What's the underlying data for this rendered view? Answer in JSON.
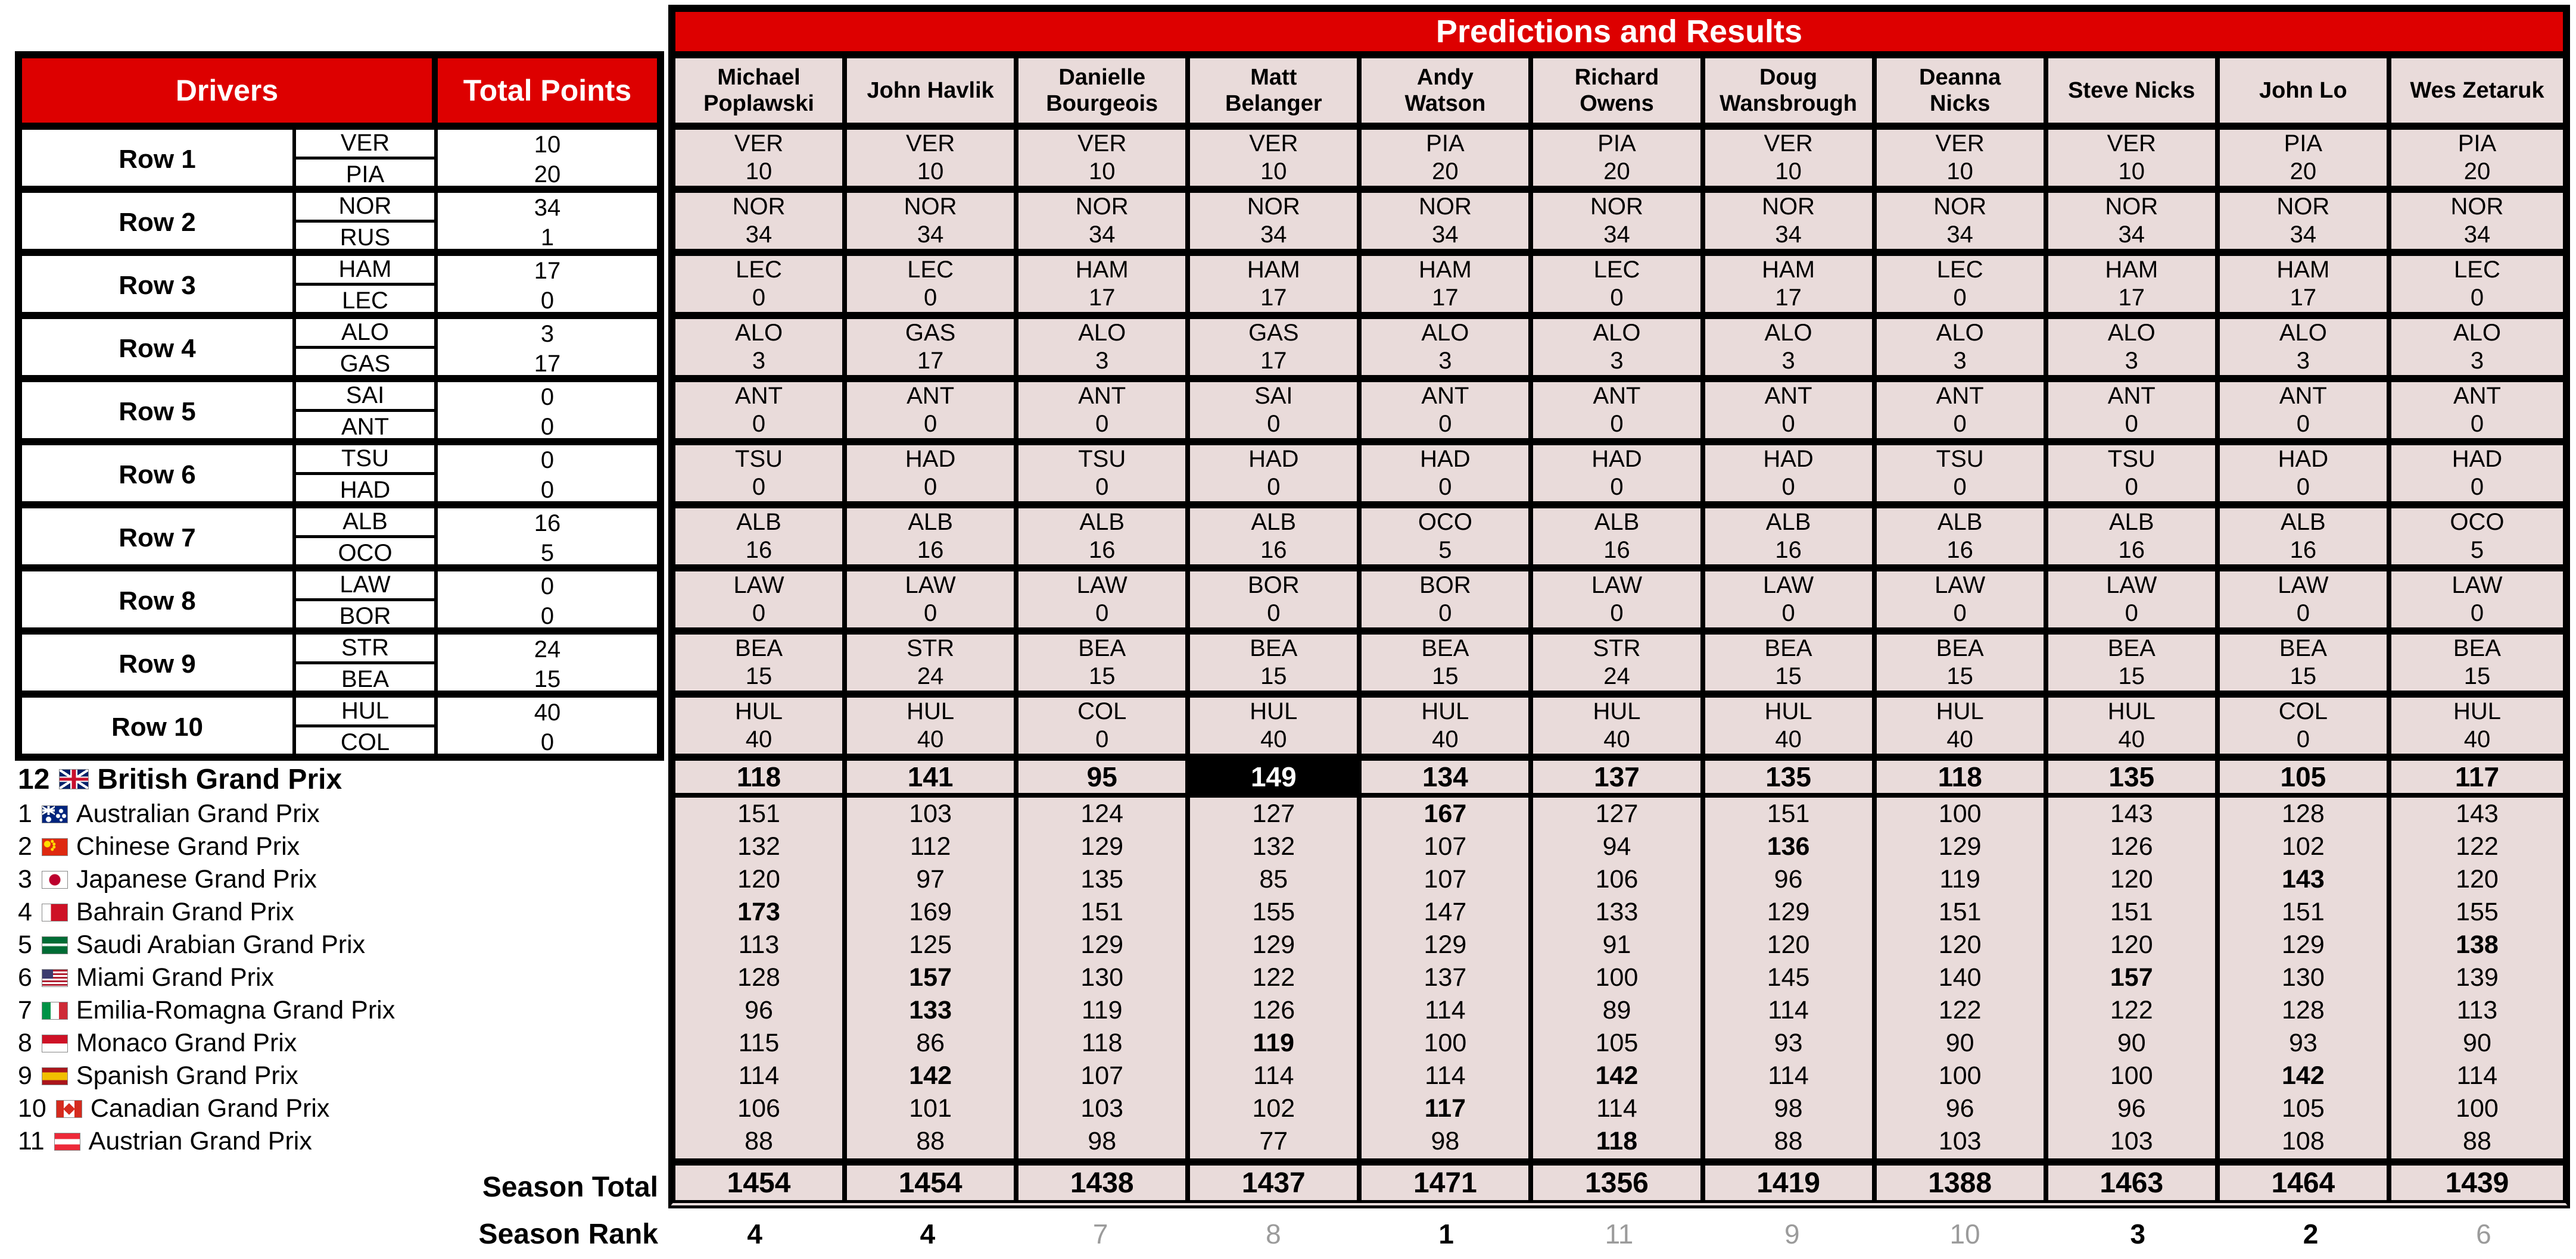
{
  "colors": {
    "header_red": "#dd0000",
    "cell_pink": "#e9dbda",
    "highlight_black": "#000000",
    "rank_gray": "#9b9b9b"
  },
  "banner": {
    "title": "Predictions and Results"
  },
  "left_header": {
    "drivers": "Drivers",
    "total_points": "Total Points"
  },
  "predictors": [
    "Michael Poplawski",
    "John Havlik",
    "Danielle Bourgeois",
    "Matt Belanger",
    "Andy Watson",
    "Richard Owens",
    "Doug Wansbrough",
    "Deanna Nicks",
    "Steve Nicks",
    "John Lo",
    "Wes Zetaruk"
  ],
  "rows": [
    {
      "label": "Row 1",
      "drivers": [
        "VER",
        "PIA"
      ],
      "points": [
        "10",
        "20"
      ],
      "predictions": [
        {
          "code": "VER",
          "pts": "10"
        },
        {
          "code": "VER",
          "pts": "10"
        },
        {
          "code": "VER",
          "pts": "10"
        },
        {
          "code": "VER",
          "pts": "10"
        },
        {
          "code": "PIA",
          "pts": "20"
        },
        {
          "code": "PIA",
          "pts": "20"
        },
        {
          "code": "VER",
          "pts": "10"
        },
        {
          "code": "VER",
          "pts": "10"
        },
        {
          "code": "VER",
          "pts": "10"
        },
        {
          "code": "PIA",
          "pts": "20"
        },
        {
          "code": "PIA",
          "pts": "20"
        }
      ]
    },
    {
      "label": "Row 2",
      "drivers": [
        "NOR",
        "RUS"
      ],
      "points": [
        "34",
        "1"
      ],
      "predictions": [
        {
          "code": "NOR",
          "pts": "34"
        },
        {
          "code": "NOR",
          "pts": "34"
        },
        {
          "code": "NOR",
          "pts": "34"
        },
        {
          "code": "NOR",
          "pts": "34"
        },
        {
          "code": "NOR",
          "pts": "34"
        },
        {
          "code": "NOR",
          "pts": "34"
        },
        {
          "code": "NOR",
          "pts": "34"
        },
        {
          "code": "NOR",
          "pts": "34"
        },
        {
          "code": "NOR",
          "pts": "34"
        },
        {
          "code": "NOR",
          "pts": "34"
        },
        {
          "code": "NOR",
          "pts": "34"
        }
      ]
    },
    {
      "label": "Row 3",
      "drivers": [
        "HAM",
        "LEC"
      ],
      "points": [
        "17",
        "0"
      ],
      "predictions": [
        {
          "code": "LEC",
          "pts": "0"
        },
        {
          "code": "LEC",
          "pts": "0"
        },
        {
          "code": "HAM",
          "pts": "17"
        },
        {
          "code": "HAM",
          "pts": "17"
        },
        {
          "code": "HAM",
          "pts": "17"
        },
        {
          "code": "LEC",
          "pts": "0"
        },
        {
          "code": "HAM",
          "pts": "17"
        },
        {
          "code": "LEC",
          "pts": "0"
        },
        {
          "code": "HAM",
          "pts": "17"
        },
        {
          "code": "HAM",
          "pts": "17"
        },
        {
          "code": "LEC",
          "pts": "0"
        }
      ]
    },
    {
      "label": "Row 4",
      "drivers": [
        "ALO",
        "GAS"
      ],
      "points": [
        "3",
        "17"
      ],
      "predictions": [
        {
          "code": "ALO",
          "pts": "3"
        },
        {
          "code": "GAS",
          "pts": "17"
        },
        {
          "code": "ALO",
          "pts": "3"
        },
        {
          "code": "GAS",
          "pts": "17"
        },
        {
          "code": "ALO",
          "pts": "3"
        },
        {
          "code": "ALO",
          "pts": "3"
        },
        {
          "code": "ALO",
          "pts": "3"
        },
        {
          "code": "ALO",
          "pts": "3"
        },
        {
          "code": "ALO",
          "pts": "3"
        },
        {
          "code": "ALO",
          "pts": "3"
        },
        {
          "code": "ALO",
          "pts": "3"
        }
      ]
    },
    {
      "label": "Row 5",
      "drivers": [
        "SAI",
        "ANT"
      ],
      "points": [
        "0",
        "0"
      ],
      "predictions": [
        {
          "code": "ANT",
          "pts": "0"
        },
        {
          "code": "ANT",
          "pts": "0"
        },
        {
          "code": "ANT",
          "pts": "0"
        },
        {
          "code": "SAI",
          "pts": "0"
        },
        {
          "code": "ANT",
          "pts": "0"
        },
        {
          "code": "ANT",
          "pts": "0"
        },
        {
          "code": "ANT",
          "pts": "0"
        },
        {
          "code": "ANT",
          "pts": "0"
        },
        {
          "code": "ANT",
          "pts": "0"
        },
        {
          "code": "ANT",
          "pts": "0"
        },
        {
          "code": "ANT",
          "pts": "0"
        }
      ]
    },
    {
      "label": "Row 6",
      "drivers": [
        "TSU",
        "HAD"
      ],
      "points": [
        "0",
        "0"
      ],
      "predictions": [
        {
          "code": "TSU",
          "pts": "0"
        },
        {
          "code": "HAD",
          "pts": "0"
        },
        {
          "code": "TSU",
          "pts": "0"
        },
        {
          "code": "HAD",
          "pts": "0"
        },
        {
          "code": "HAD",
          "pts": "0"
        },
        {
          "code": "HAD",
          "pts": "0"
        },
        {
          "code": "HAD",
          "pts": "0"
        },
        {
          "code": "TSU",
          "pts": "0"
        },
        {
          "code": "TSU",
          "pts": "0"
        },
        {
          "code": "HAD",
          "pts": "0"
        },
        {
          "code": "HAD",
          "pts": "0"
        }
      ]
    },
    {
      "label": "Row 7",
      "drivers": [
        "ALB",
        "OCO"
      ],
      "points": [
        "16",
        "5"
      ],
      "predictions": [
        {
          "code": "ALB",
          "pts": "16"
        },
        {
          "code": "ALB",
          "pts": "16"
        },
        {
          "code": "ALB",
          "pts": "16"
        },
        {
          "code": "ALB",
          "pts": "16"
        },
        {
          "code": "OCO",
          "pts": "5"
        },
        {
          "code": "ALB",
          "pts": "16"
        },
        {
          "code": "ALB",
          "pts": "16"
        },
        {
          "code": "ALB",
          "pts": "16"
        },
        {
          "code": "ALB",
          "pts": "16"
        },
        {
          "code": "ALB",
          "pts": "16"
        },
        {
          "code": "OCO",
          "pts": "5"
        }
      ]
    },
    {
      "label": "Row 8",
      "drivers": [
        "LAW",
        "BOR"
      ],
      "points": [
        "0",
        "0"
      ],
      "predictions": [
        {
          "code": "LAW",
          "pts": "0"
        },
        {
          "code": "LAW",
          "pts": "0"
        },
        {
          "code": "LAW",
          "pts": "0"
        },
        {
          "code": "BOR",
          "pts": "0"
        },
        {
          "code": "BOR",
          "pts": "0"
        },
        {
          "code": "LAW",
          "pts": "0"
        },
        {
          "code": "LAW",
          "pts": "0"
        },
        {
          "code": "LAW",
          "pts": "0"
        },
        {
          "code": "LAW",
          "pts": "0"
        },
        {
          "code": "LAW",
          "pts": "0"
        },
        {
          "code": "LAW",
          "pts": "0"
        }
      ]
    },
    {
      "label": "Row 9",
      "drivers": [
        "STR",
        "BEA"
      ],
      "points": [
        "24",
        "15"
      ],
      "predictions": [
        {
          "code": "BEA",
          "pts": "15"
        },
        {
          "code": "STR",
          "pts": "24"
        },
        {
          "code": "BEA",
          "pts": "15"
        },
        {
          "code": "BEA",
          "pts": "15"
        },
        {
          "code": "BEA",
          "pts": "15"
        },
        {
          "code": "STR",
          "pts": "24"
        },
        {
          "code": "BEA",
          "pts": "15"
        },
        {
          "code": "BEA",
          "pts": "15"
        },
        {
          "code": "BEA",
          "pts": "15"
        },
        {
          "code": "BEA",
          "pts": "15"
        },
        {
          "code": "BEA",
          "pts": "15"
        }
      ]
    },
    {
      "label": "Row 10",
      "drivers": [
        "HUL",
        "COL"
      ],
      "points": [
        "40",
        "0"
      ],
      "predictions": [
        {
          "code": "HUL",
          "pts": "40"
        },
        {
          "code": "HUL",
          "pts": "40"
        },
        {
          "code": "COL",
          "pts": "0"
        },
        {
          "code": "HUL",
          "pts": "40"
        },
        {
          "code": "HUL",
          "pts": "40"
        },
        {
          "code": "HUL",
          "pts": "40"
        },
        {
          "code": "HUL",
          "pts": "40"
        },
        {
          "code": "HUL",
          "pts": "40"
        },
        {
          "code": "HUL",
          "pts": "40"
        },
        {
          "code": "COL",
          "pts": "0"
        },
        {
          "code": "HUL",
          "pts": "40"
        }
      ]
    }
  ],
  "current_race": {
    "number": "12",
    "flag": "gb",
    "name": "British Grand Prix",
    "totals": [
      118,
      141,
      95,
      149,
      134,
      137,
      135,
      118,
      135,
      105,
      117
    ]
  },
  "races": [
    {
      "number": "1",
      "flag": "au",
      "name": "Australian Grand Prix",
      "scores": [
        151,
        103,
        124,
        127,
        167,
        127,
        151,
        100,
        143,
        128,
        143
      ]
    },
    {
      "number": "2",
      "flag": "cn",
      "name": "Chinese Grand Prix",
      "scores": [
        132,
        112,
        129,
        132,
        107,
        94,
        136,
        129,
        126,
        102,
        122
      ]
    },
    {
      "number": "3",
      "flag": "jp",
      "name": "Japanese Grand Prix",
      "scores": [
        120,
        97,
        135,
        85,
        107,
        106,
        96,
        119,
        120,
        143,
        120
      ]
    },
    {
      "number": "4",
      "flag": "bh",
      "name": "Bahrain Grand Prix",
      "scores": [
        173,
        169,
        151,
        155,
        147,
        133,
        129,
        151,
        151,
        151,
        155
      ]
    },
    {
      "number": "5",
      "flag": "sa",
      "name": "Saudi Arabian Grand Prix",
      "scores": [
        113,
        125,
        129,
        129,
        129,
        91,
        120,
        120,
        120,
        129,
        138
      ]
    },
    {
      "number": "6",
      "flag": "us",
      "name": "Miami Grand Prix",
      "scores": [
        128,
        157,
        130,
        122,
        137,
        100,
        145,
        140,
        157,
        130,
        139
      ]
    },
    {
      "number": "7",
      "flag": "it",
      "name": "Emilia-Romagna Grand Prix",
      "scores": [
        96,
        133,
        119,
        126,
        114,
        89,
        114,
        122,
        122,
        128,
        113
      ]
    },
    {
      "number": "8",
      "flag": "mc",
      "name": "Monaco Grand Prix",
      "scores": [
        115,
        86,
        118,
        119,
        100,
        105,
        93,
        90,
        90,
        93,
        90
      ]
    },
    {
      "number": "9",
      "flag": "es",
      "name": "Spanish Grand Prix",
      "scores": [
        114,
        142,
        107,
        114,
        114,
        142,
        114,
        100,
        100,
        142,
        114
      ]
    },
    {
      "number": "10",
      "flag": "ca",
      "name": "Canadian Grand Prix",
      "scores": [
        106,
        101,
        103,
        102,
        117,
        114,
        98,
        96,
        96,
        105,
        100
      ]
    },
    {
      "number": "11",
      "flag": "at",
      "name": "Austrian Grand Prix",
      "scores": [
        88,
        88,
        98,
        77,
        98,
        118,
        88,
        103,
        103,
        108,
        88
      ]
    }
  ],
  "season_total": {
    "label": "Season Total",
    "values": [
      1454,
      1454,
      1438,
      1437,
      1471,
      1356,
      1419,
      1388,
      1463,
      1464,
      1439
    ]
  },
  "season_rank": {
    "label": "Season Rank",
    "values": [
      4,
      4,
      7,
      8,
      1,
      11,
      9,
      10,
      3,
      2,
      6
    ]
  }
}
